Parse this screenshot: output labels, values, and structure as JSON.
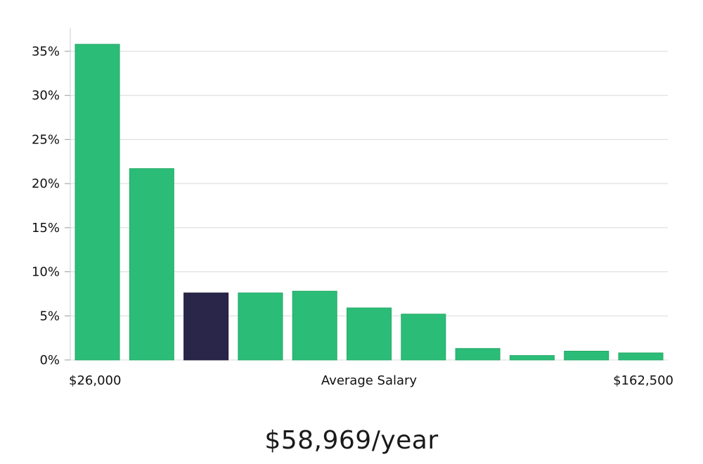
{
  "chart_data": {
    "type": "bar",
    "xlabel": "Average Salary",
    "x_min_label": "$26,000",
    "x_max_label": "$162,500",
    "ylabel": "",
    "ylim": [
      0,
      37
    ],
    "yticks": [
      0,
      5,
      10,
      15,
      20,
      25,
      30,
      35
    ],
    "ytick_labels": [
      "0%",
      "5%",
      "10%",
      "15%",
      "20%",
      "25%",
      "30%",
      "35%"
    ],
    "grid": true,
    "values": [
      35.8,
      21.7,
      7.6,
      7.6,
      7.8,
      5.9,
      5.2,
      1.3,
      0.5,
      1.0,
      0.8
    ],
    "highlight_index": 2,
    "colors": {
      "bar": "#2bbd77",
      "bar_edge": "#22a866",
      "highlight": "#29264a",
      "grid": "#d9d9d9",
      "axis": "#cccccc"
    }
  },
  "summary": {
    "salary_text": "$58,969/year"
  }
}
